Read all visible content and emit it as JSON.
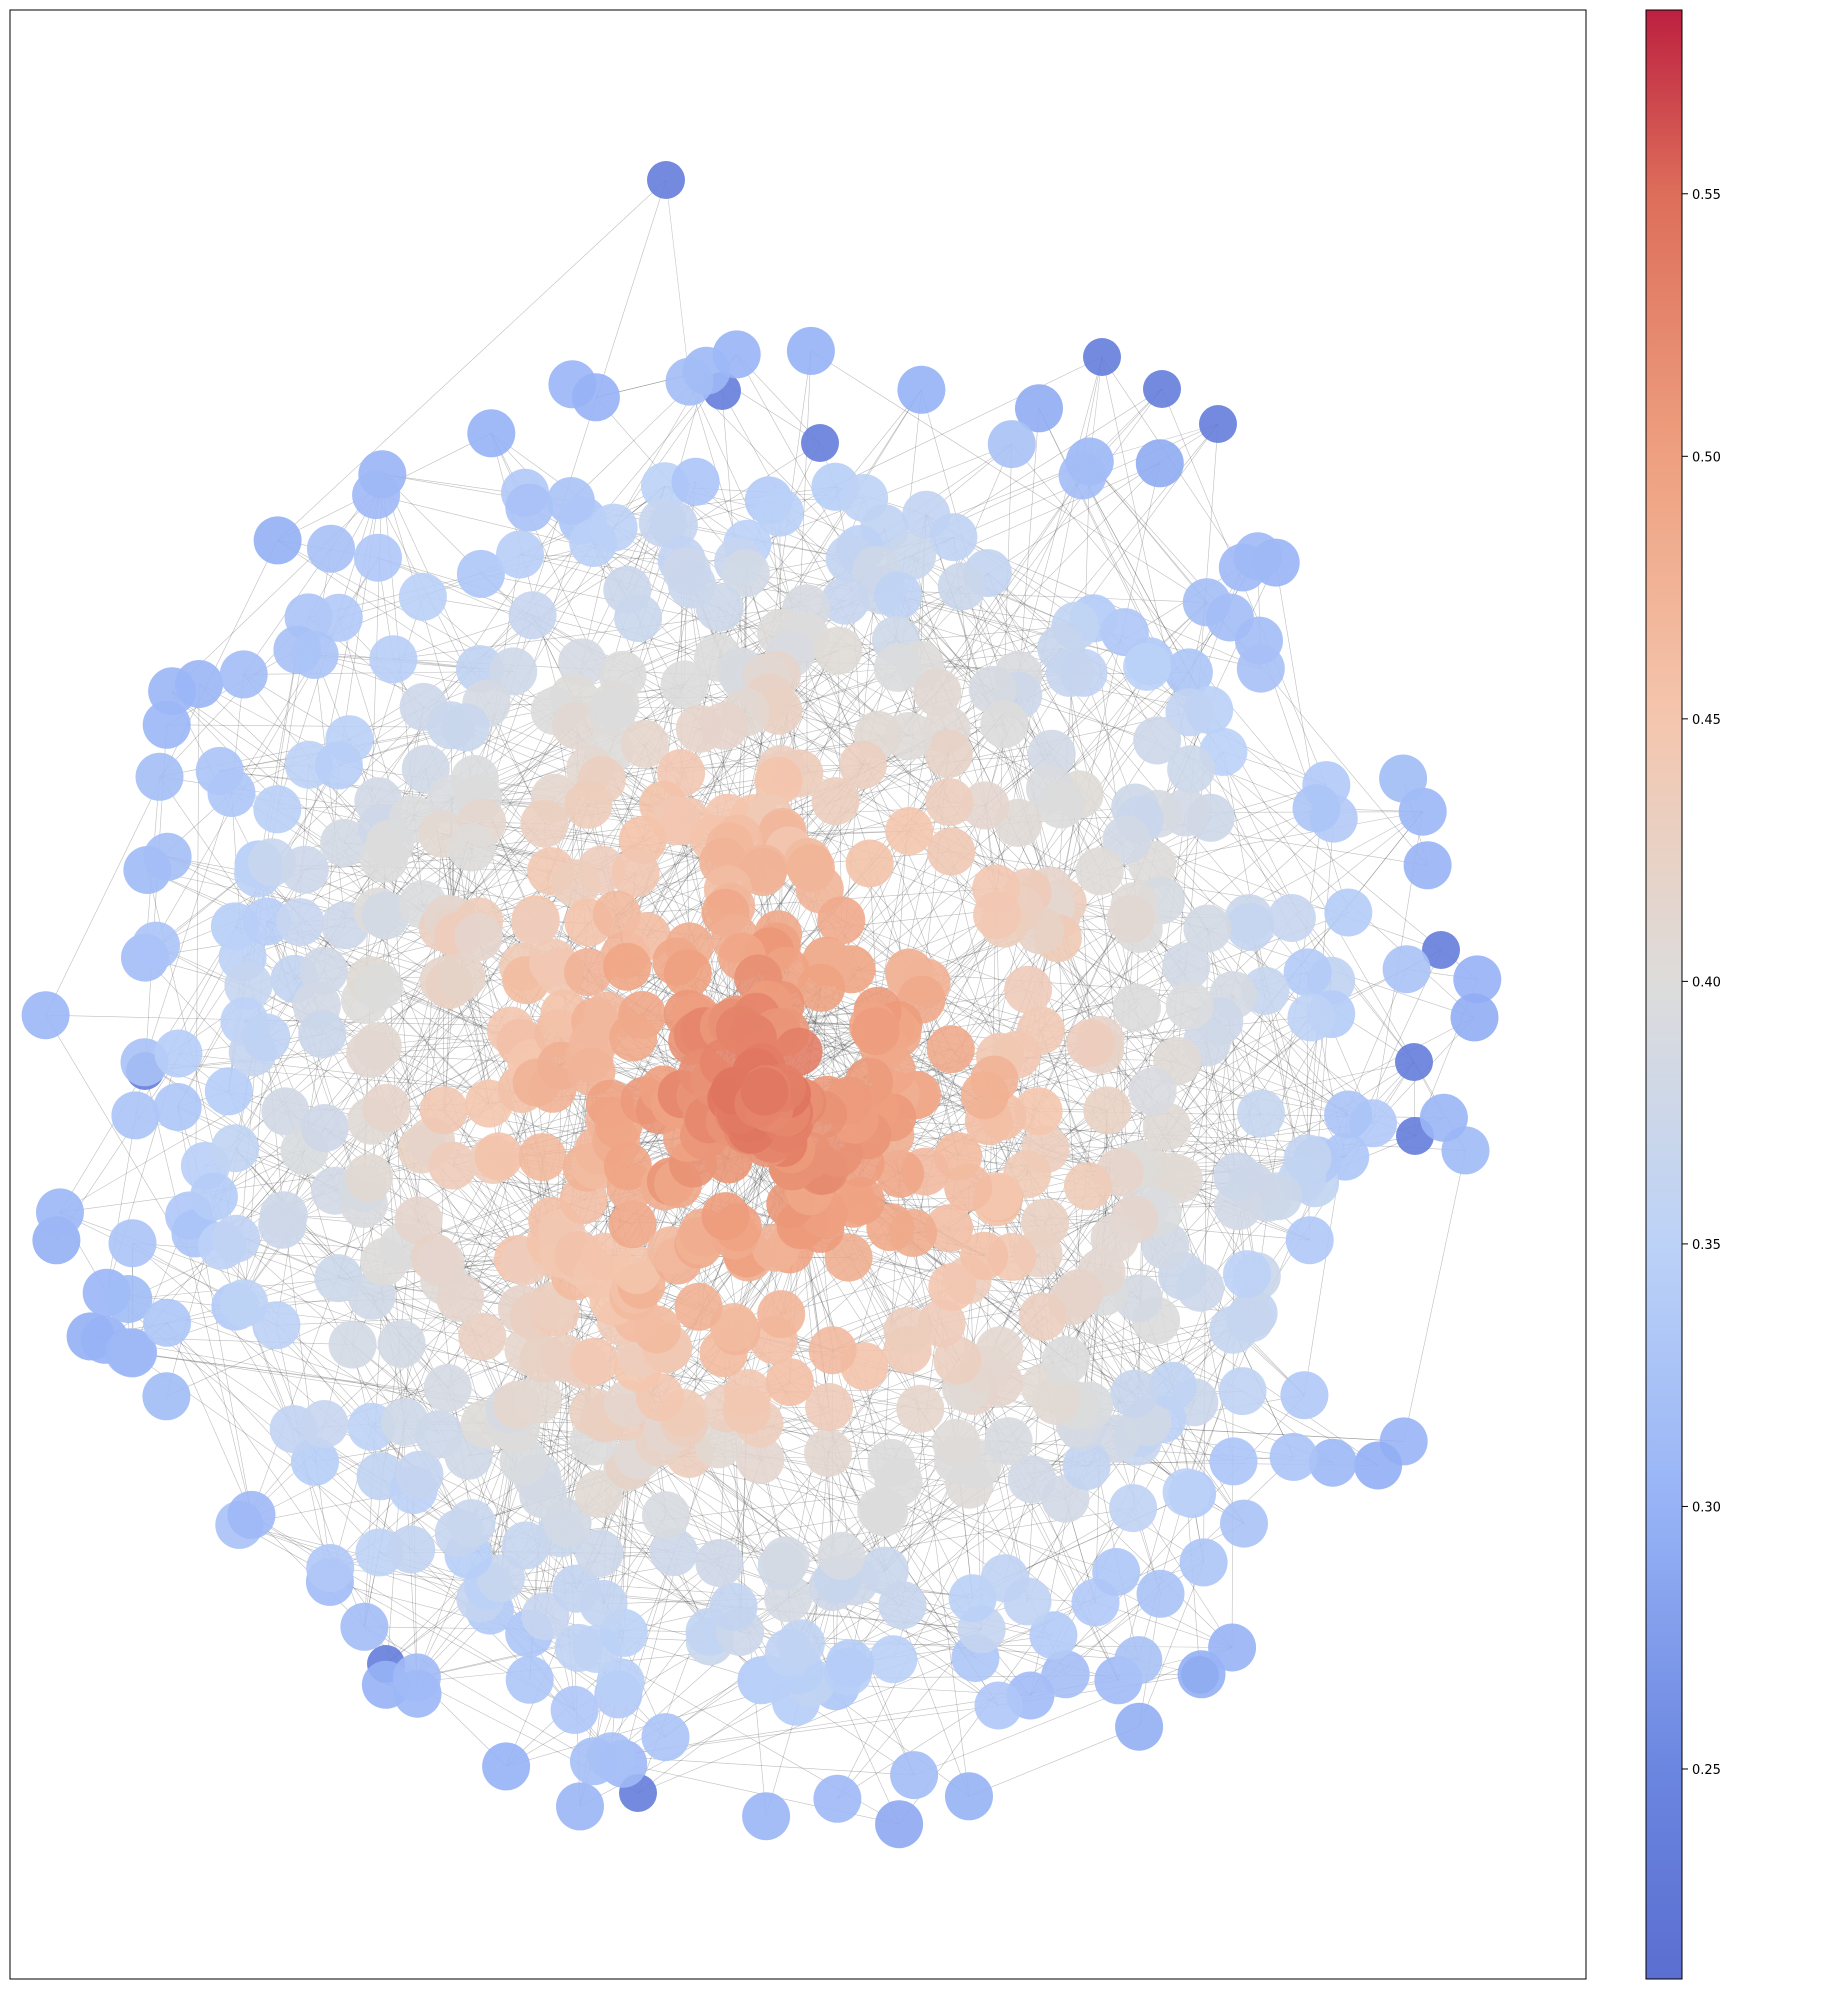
{
  "diagram": {
    "type": "network-graph",
    "title": "",
    "layout": "force-directed",
    "node_color_map": "coolwarm",
    "edge_color": "#444444",
    "background": "#ffffff",
    "frame_color": "#000000"
  },
  "colorbar": {
    "min": 0.21,
    "max": 0.585,
    "ticks": [
      {
        "value": 0.25,
        "label": "0.25"
      },
      {
        "value": 0.3,
        "label": "0.30"
      },
      {
        "value": 0.35,
        "label": "0.35"
      },
      {
        "value": 0.4,
        "label": "0.40"
      },
      {
        "value": 0.45,
        "label": "0.45"
      },
      {
        "value": 0.5,
        "label": "0.50"
      },
      {
        "value": 0.55,
        "label": "0.55"
      }
    ],
    "stops": [
      {
        "value": 0.21,
        "color": "#5b6ed1"
      },
      {
        "value": 0.25,
        "color": "#6b86e0"
      },
      {
        "value": 0.3,
        "color": "#97b3f6"
      },
      {
        "value": 0.35,
        "color": "#bcd2f7"
      },
      {
        "value": 0.4,
        "color": "#dddcdb"
      },
      {
        "value": 0.45,
        "color": "#f4c6ae"
      },
      {
        "value": 0.5,
        "color": "#eea07f"
      },
      {
        "value": 0.55,
        "color": "#dd6e5a"
      },
      {
        "value": 0.585,
        "color": "#bd2040"
      }
    ]
  }
}
